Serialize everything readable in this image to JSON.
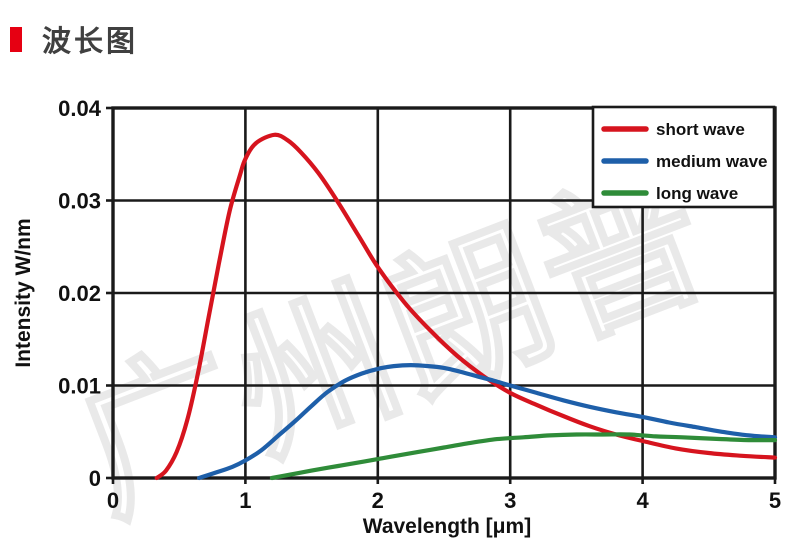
{
  "title": {
    "text": "波长图",
    "accent_color": "#e60012",
    "text_color": "#404040"
  },
  "watermark": {
    "text": "广州朗普",
    "color": "#e9e9e9"
  },
  "chart_data": {
    "type": "line",
    "xlabel": "Wavelength [μm]",
    "ylabel": "Intensity W/nm",
    "xlim": [
      0,
      5
    ],
    "ylim": [
      0,
      0.04
    ],
    "grid": true,
    "grid_color": "#1a1a1a",
    "legend_position": "top-right",
    "xticks": {
      "values": [
        0,
        1,
        2,
        3,
        4,
        5
      ],
      "labels": [
        "0",
        "1",
        "2",
        "3",
        "4",
        "5"
      ]
    },
    "yticks": {
      "values": [
        0,
        0.01,
        0.02,
        0.03,
        0.04
      ],
      "labels": [
        "0",
        "0.01",
        "0.02",
        "0.03",
        "0.04"
      ]
    },
    "series": [
      {
        "name": "short wave",
        "color": "#d6141e",
        "points": [
          [
            0.33,
            0
          ],
          [
            0.4,
            0.0008
          ],
          [
            0.48,
            0.0028
          ],
          [
            0.56,
            0.0062
          ],
          [
            0.64,
            0.0112
          ],
          [
            0.72,
            0.0172
          ],
          [
            0.8,
            0.0232
          ],
          [
            0.88,
            0.0288
          ],
          [
            0.96,
            0.0328
          ],
          [
            1.0,
            0.0345
          ],
          [
            1.08,
            0.0362
          ],
          [
            1.22,
            0.0371
          ],
          [
            1.32,
            0.0365
          ],
          [
            1.42,
            0.0352
          ],
          [
            1.55,
            0.033
          ],
          [
            1.7,
            0.0298
          ],
          [
            1.85,
            0.0263
          ],
          [
            2.0,
            0.0228
          ],
          [
            2.2,
            0.019
          ],
          [
            2.4,
            0.0159
          ],
          [
            2.6,
            0.0132
          ],
          [
            2.8,
            0.011
          ],
          [
            3.0,
            0.0092
          ],
          [
            3.2,
            0.0079
          ],
          [
            3.4,
            0.0067
          ],
          [
            3.6,
            0.0056
          ],
          [
            3.8,
            0.0047
          ],
          [
            4.0,
            0.004
          ],
          [
            4.25,
            0.0032
          ],
          [
            4.5,
            0.0027
          ],
          [
            4.75,
            0.0024
          ],
          [
            5.0,
            0.0022
          ]
        ]
      },
      {
        "name": "medium wave",
        "color": "#1e5fa9",
        "points": [
          [
            0.65,
            0
          ],
          [
            0.78,
            0.0006
          ],
          [
            0.9,
            0.0012
          ],
          [
            1.0,
            0.0019
          ],
          [
            1.12,
            0.003
          ],
          [
            1.25,
            0.0046
          ],
          [
            1.38,
            0.0062
          ],
          [
            1.5,
            0.0078
          ],
          [
            1.62,
            0.0093
          ],
          [
            1.75,
            0.0105
          ],
          [
            1.88,
            0.0113
          ],
          [
            2.0,
            0.0118
          ],
          [
            2.12,
            0.0121
          ],
          [
            2.25,
            0.0122
          ],
          [
            2.38,
            0.0121
          ],
          [
            2.5,
            0.0119
          ],
          [
            2.62,
            0.0115
          ],
          [
            2.75,
            0.011
          ],
          [
            2.88,
            0.0105
          ],
          [
            3.0,
            0.01
          ],
          [
            3.2,
            0.0092
          ],
          [
            3.4,
            0.0084
          ],
          [
            3.6,
            0.0077
          ],
          [
            3.8,
            0.0071
          ],
          [
            4.0,
            0.0066
          ],
          [
            4.2,
            0.006
          ],
          [
            4.4,
            0.0055
          ],
          [
            4.6,
            0.005
          ],
          [
            4.8,
            0.0046
          ],
          [
            5.0,
            0.0044
          ]
        ]
      },
      {
        "name": "long wave",
        "color": "#2f8c39",
        "points": [
          [
            1.2,
            0
          ],
          [
            1.35,
            0.0004
          ],
          [
            1.5,
            0.0008
          ],
          [
            1.7,
            0.0013
          ],
          [
            1.9,
            0.0018
          ],
          [
            2.1,
            0.0023
          ],
          [
            2.3,
            0.0028
          ],
          [
            2.5,
            0.0033
          ],
          [
            2.7,
            0.0038
          ],
          [
            2.9,
            0.0042
          ],
          [
            3.1,
            0.0044
          ],
          [
            3.3,
            0.0046
          ],
          [
            3.5,
            0.0047
          ],
          [
            3.7,
            0.0047
          ],
          [
            3.9,
            0.0047
          ],
          [
            4.1,
            0.0045
          ],
          [
            4.3,
            0.0044
          ],
          [
            4.6,
            0.0042
          ],
          [
            4.8,
            0.0041
          ],
          [
            5.0,
            0.0041
          ]
        ]
      }
    ]
  }
}
